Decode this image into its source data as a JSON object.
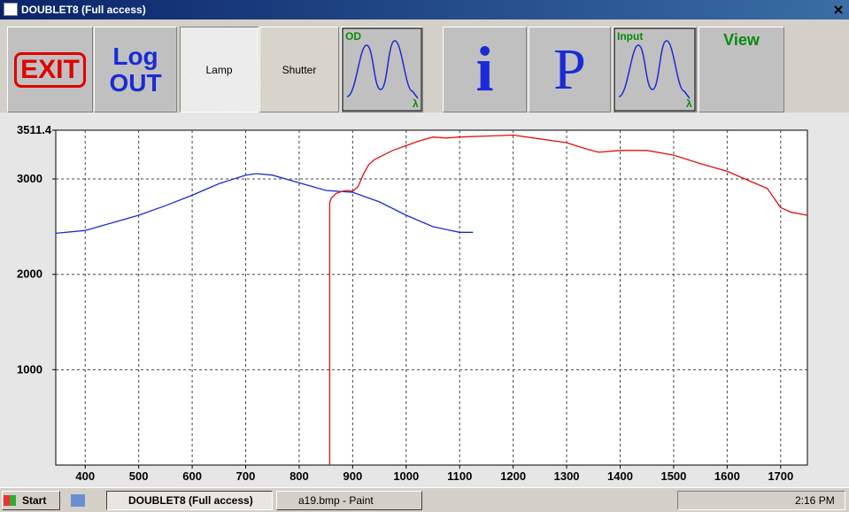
{
  "window": {
    "title": "DOUBLET8 (Full access)"
  },
  "toolbar": {
    "exit": "EXIT",
    "logout": [
      "Log",
      "OUT"
    ],
    "lamp": "Lamp",
    "shutter": "Shutter",
    "od": {
      "label": "OD",
      "axis": "λ"
    },
    "info": "i",
    "params": "P",
    "input": {
      "label": "Input",
      "axis": "λ"
    },
    "view": "View"
  },
  "chart_data": {
    "type": "line",
    "xlim": [
      345,
      1750
    ],
    "ylim": [
      0,
      3511.4
    ],
    "xticks": [
      400,
      500,
      600,
      700,
      800,
      900,
      1000,
      1100,
      1200,
      1300,
      1400,
      1500,
      1600,
      1700
    ],
    "yticks": [
      1000,
      2000,
      3000,
      3511.4
    ],
    "grid": true,
    "series": [
      {
        "color": "#1a2bd6",
        "x": [
          345,
          400,
          450,
          500,
          550,
          600,
          650,
          700,
          720,
          750,
          800,
          850,
          900,
          950,
          1000,
          1050,
          1100,
          1125
        ],
        "values": [
          2430,
          2460,
          2540,
          2620,
          2720,
          2830,
          2950,
          3040,
          3056,
          3040,
          2960,
          2880,
          2860,
          2760,
          2620,
          2500,
          2440,
          2440
        ]
      },
      {
        "color": "#e01010",
        "x": [
          857,
          857,
          860,
          870,
          880,
          890,
          900,
          910,
          920,
          930,
          940,
          950,
          975,
          1000,
          1025,
          1050,
          1075,
          1100,
          1150,
          1200,
          1250,
          1300,
          1340,
          1360,
          1400,
          1450,
          1500,
          1550,
          1600,
          1625,
          1650,
          1675,
          1690,
          1700,
          1720,
          1740,
          1750
        ],
        "values": [
          0,
          2750,
          2800,
          2850,
          2870,
          2880,
          2870,
          2920,
          3050,
          3150,
          3200,
          3230,
          3300,
          3350,
          3400,
          3440,
          3430,
          3440,
          3450,
          3460,
          3420,
          3380,
          3310,
          3280,
          3300,
          3300,
          3250,
          3160,
          3080,
          3020,
          2960,
          2900,
          2780,
          2700,
          2650,
          2630,
          2620
        ]
      }
    ]
  },
  "taskbar": {
    "start": "Start",
    "tasks": [
      "DOUBLET8 (Full access)",
      "a19.bmp - Paint"
    ],
    "clock": "2:16 PM"
  }
}
